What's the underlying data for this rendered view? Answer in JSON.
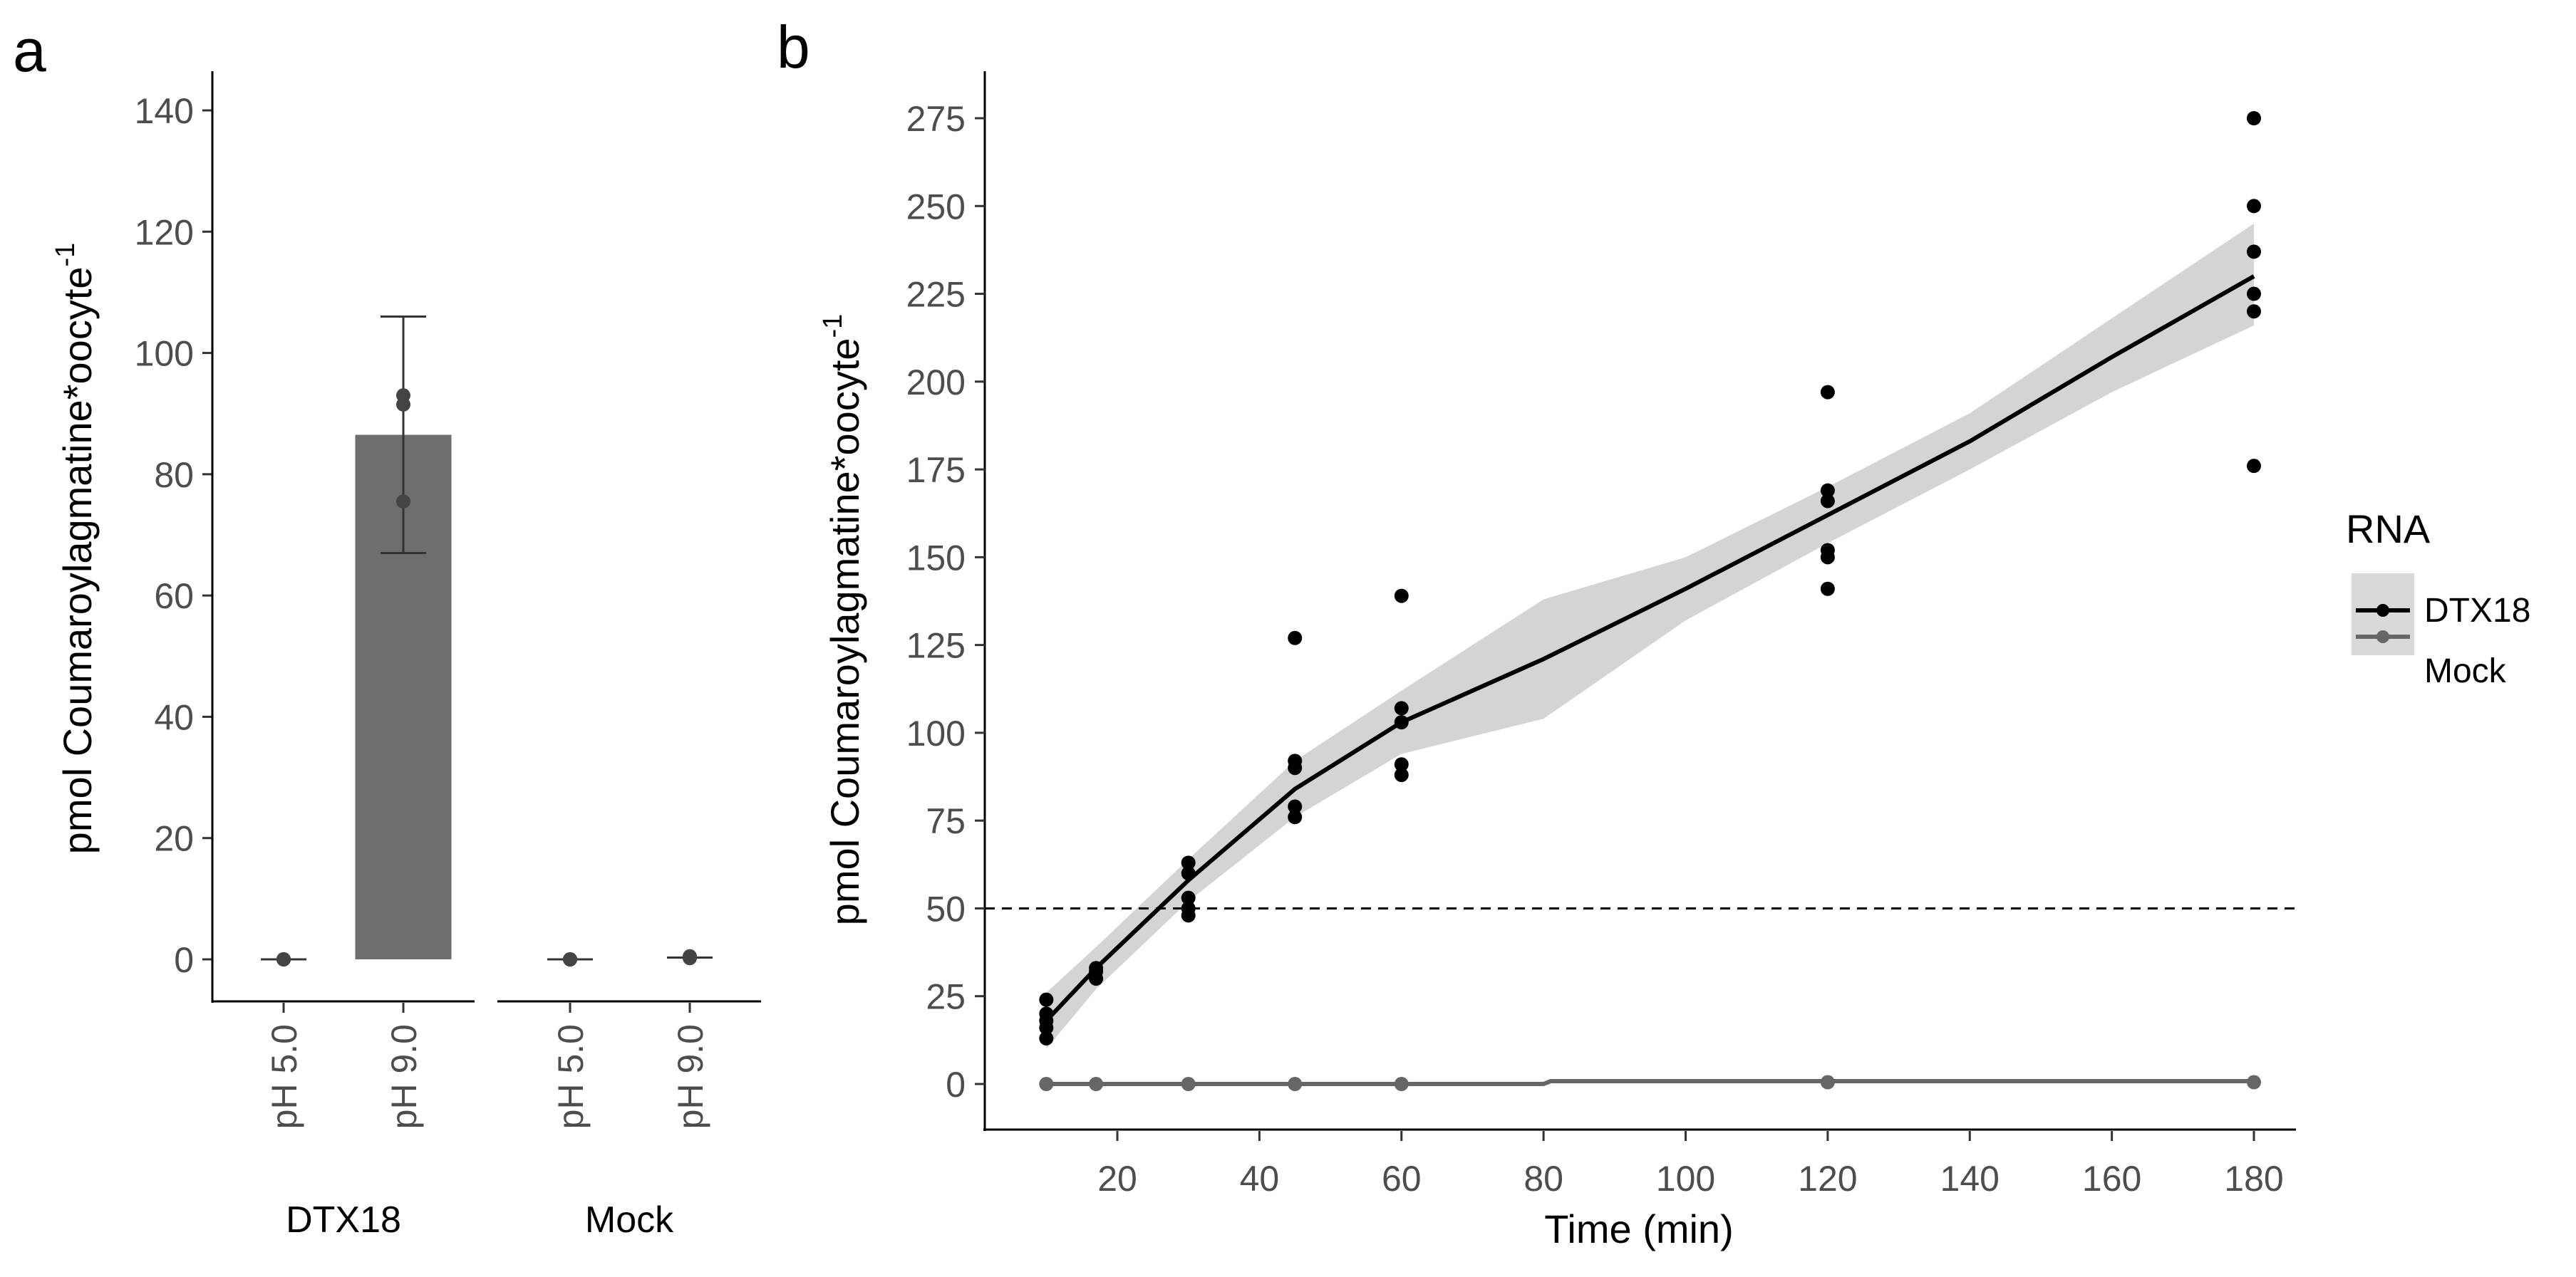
{
  "chart_data": [
    {
      "panel": "a",
      "type": "bar",
      "ylabel": "pmol Coumaroylagmatine*oocyte",
      "ylabel_superscript": "-1",
      "ylim": [
        0,
        140
      ],
      "yticks": [
        0,
        20,
        40,
        60,
        80,
        100,
        120,
        140
      ],
      "groups": [
        {
          "name": "DTX18",
          "bars": [
            {
              "label": "pH 5.0",
              "mean": 0,
              "error_low": 0,
              "error_high": 0,
              "points": [
                0,
                0,
                0
              ]
            },
            {
              "label": "pH 9.0",
              "mean": 86.5,
              "error_low": 67,
              "error_high": 106,
              "points": [
                91.5,
                93,
                75.5
              ]
            }
          ]
        },
        {
          "name": "Mock",
          "bars": [
            {
              "label": "pH 5.0",
              "mean": 0,
              "error_low": 0,
              "error_high": 0,
              "points": [
                0,
                0,
                0
              ]
            },
            {
              "label": "pH 9.0",
              "mean": 0.3,
              "error_low": 0,
              "error_high": 0.6,
              "points": [
                0.3,
                0.5,
                0.2
              ]
            }
          ]
        }
      ]
    },
    {
      "panel": "b",
      "type": "scatter",
      "xlabel": "Time (min)",
      "ylabel": "pmol Coumaroylagmatine*oocyte",
      "ylabel_superscript": "-1",
      "xlim": [
        5,
        185
      ],
      "ylim": [
        -14,
        282
      ],
      "xticks": [
        20,
        40,
        60,
        80,
        100,
        120,
        140,
        160,
        180
      ],
      "yticks": [
        0,
        25,
        50,
        75,
        100,
        125,
        150,
        175,
        200,
        225,
        250,
        275
      ],
      "hline": {
        "y": 50,
        "style": "dashed"
      },
      "legend": {
        "title": "RNA",
        "entries": [
          "DTX18",
          "Mock"
        ],
        "position": "right"
      },
      "series": [
        {
          "name": "DTX18",
          "color": "#000000",
          "points": [
            [
              10,
              13
            ],
            [
              10,
              16
            ],
            [
              10,
              18
            ],
            [
              10,
              20
            ],
            [
              10,
              24
            ],
            [
              17,
              30
            ],
            [
              17,
              32
            ],
            [
              17,
              33
            ],
            [
              30,
              48
            ],
            [
              30,
              50
            ],
            [
              30,
              53
            ],
            [
              30,
              60
            ],
            [
              30,
              63
            ],
            [
              45,
              76
            ],
            [
              45,
              79
            ],
            [
              45,
              90
            ],
            [
              45,
              92
            ],
            [
              45,
              127
            ],
            [
              60,
              88
            ],
            [
              60,
              91
            ],
            [
              60,
              103
            ],
            [
              60,
              107
            ],
            [
              60,
              139
            ],
            [
              120,
              141
            ],
            [
              120,
              150
            ],
            [
              120,
              152
            ],
            [
              120,
              166
            ],
            [
              120,
              169
            ],
            [
              120,
              197
            ],
            [
              180,
              176
            ],
            [
              180,
              220
            ],
            [
              180,
              225
            ],
            [
              180,
              237
            ],
            [
              180,
              250
            ],
            [
              180,
              275
            ]
          ],
          "fit": [
            [
              10,
              18
            ],
            [
              17,
              33
            ],
            [
              30,
              58
            ],
            [
              45,
              84
            ],
            [
              60,
              103
            ],
            [
              80,
              121
            ],
            [
              100,
              141
            ],
            [
              120,
              162
            ],
            [
              140,
              183
            ],
            [
              160,
              207
            ],
            [
              180,
              230
            ]
          ],
          "ci_upper": [
            [
              10,
              26
            ],
            [
              17,
              39
            ],
            [
              30,
              64
            ],
            [
              45,
              92
            ],
            [
              60,
              112
            ],
            [
              80,
              138
            ],
            [
              100,
              150
            ],
            [
              120,
              170
            ],
            [
              140,
              191
            ],
            [
              160,
              218
            ],
            [
              180,
              245
            ]
          ],
          "ci_lower": [
            [
              10,
              10
            ],
            [
              17,
              27
            ],
            [
              30,
              52
            ],
            [
              45,
              76
            ],
            [
              60,
              94
            ],
            [
              80,
              104
            ],
            [
              100,
              132
            ],
            [
              120,
              154
            ],
            [
              140,
              175
            ],
            [
              160,
              197
            ],
            [
              180,
              216
            ]
          ]
        },
        {
          "name": "Mock",
          "color": "#666666",
          "points": [
            [
              10,
              0
            ],
            [
              17,
              0
            ],
            [
              30,
              0
            ],
            [
              45,
              0
            ],
            [
              60,
              0
            ],
            [
              120,
              0.5
            ],
            [
              180,
              0.5
            ]
          ],
          "fit": [
            [
              10,
              0
            ],
            [
              80,
              0
            ],
            [
              81,
              0.8
            ],
            [
              180,
              0.8
            ]
          ]
        }
      ]
    }
  ]
}
